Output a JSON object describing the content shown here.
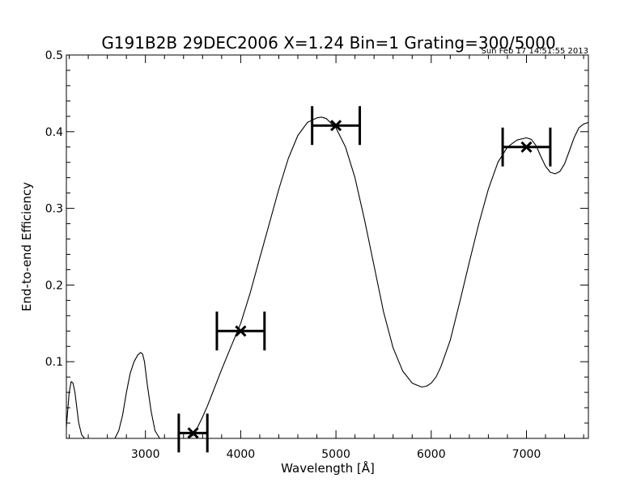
{
  "chart_data": {
    "type": "line",
    "title": "G191B2B 29DEC2006 X=1.24 Bin=1 Grating=300/5000",
    "timestamp": "Sun Feb 17 14:51:55 2013",
    "xlabel": "Wavelength [Å]",
    "ylabel": "End-to-end Efficiency",
    "xlim": [
      2170,
      7650
    ],
    "ylim": [
      0.0,
      0.5
    ],
    "x_ticks": [
      3000,
      4000,
      5000,
      6000,
      7000
    ],
    "y_ticks": [
      0.1,
      0.2,
      0.3,
      0.4,
      0.5
    ],
    "grid": false,
    "series": [
      {
        "x": [
          2170,
          2200,
          2220,
          2240,
          2260,
          2280,
          2300,
          2330,
          2360,
          2400,
          2500,
          2600,
          2680,
          2720,
          2760,
          2800,
          2840,
          2880,
          2920,
          2950,
          2970,
          2990,
          3020,
          3060,
          3100,
          3150,
          3200,
          3250,
          3300,
          3350,
          3400,
          3450,
          3500,
          3550,
          3600,
          3650,
          3700,
          3800,
          3900,
          4000,
          4100,
          4200,
          4300,
          4400,
          4500,
          4600,
          4700,
          4800,
          4850,
          4900,
          5000,
          5100,
          5200,
          5300,
          5400,
          5500,
          5600,
          5700,
          5800,
          5900,
          5950,
          6000,
          6050,
          6100,
          6200,
          6300,
          6400,
          6500,
          6600,
          6700,
          6800,
          6900,
          7000,
          7050,
          7100,
          7150,
          7200,
          7250,
          7300,
          7350,
          7400,
          7450,
          7500,
          7550,
          7600,
          7650
        ],
        "y": [
          0.015,
          0.06,
          0.074,
          0.072,
          0.06,
          0.04,
          0.02,
          0.005,
          0.0,
          0.0,
          0.0,
          0.0,
          0.0,
          0.01,
          0.03,
          0.06,
          0.085,
          0.1,
          0.109,
          0.112,
          0.11,
          0.1,
          0.07,
          0.035,
          0.01,
          0.0,
          0.0,
          0.0,
          0.0,
          0.0,
          0.0,
          0.0,
          0.004,
          0.015,
          0.028,
          0.042,
          0.058,
          0.09,
          0.12,
          0.15,
          0.19,
          0.235,
          0.28,
          0.325,
          0.365,
          0.395,
          0.412,
          0.418,
          0.419,
          0.417,
          0.405,
          0.38,
          0.34,
          0.285,
          0.225,
          0.165,
          0.118,
          0.088,
          0.072,
          0.067,
          0.068,
          0.072,
          0.08,
          0.093,
          0.128,
          0.178,
          0.23,
          0.28,
          0.325,
          0.36,
          0.38,
          0.389,
          0.392,
          0.39,
          0.382,
          0.368,
          0.355,
          0.347,
          0.345,
          0.348,
          0.358,
          0.375,
          0.392,
          0.405,
          0.41,
          0.412
        ]
      }
    ],
    "points": [
      {
        "x": 3500,
        "y": 0.007,
        "xerr": 150
      },
      {
        "x": 4000,
        "y": 0.14,
        "xerr": 250
      },
      {
        "x": 5000,
        "y": 0.408,
        "xerr": 250
      },
      {
        "x": 7000,
        "y": 0.38,
        "xerr": 250
      }
    ]
  }
}
